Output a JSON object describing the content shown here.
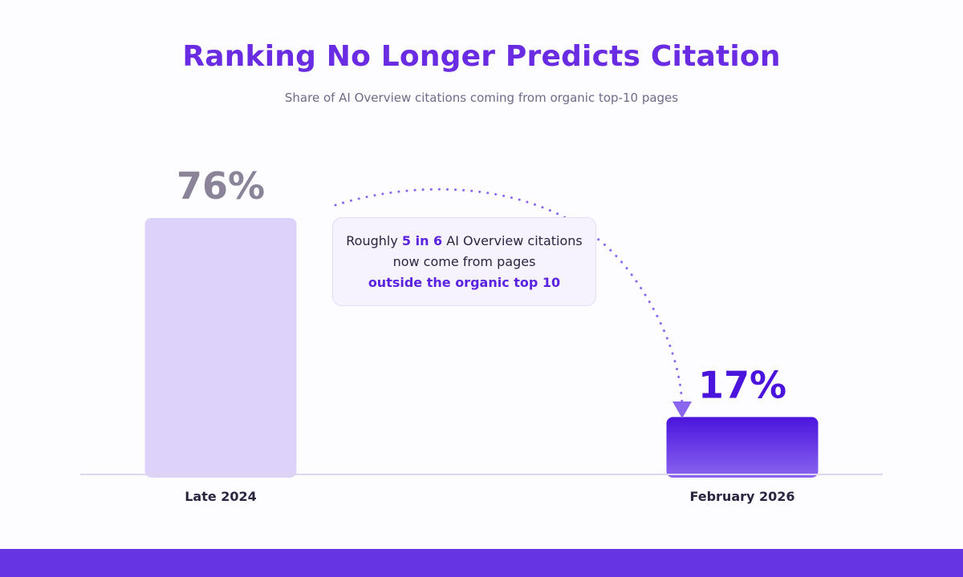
{
  "title": "Ranking No Longer Predicts Citation",
  "subtitle": "Share of AI Overview citations coming from organic top-10 pages",
  "callout": {
    "pre": "Roughly ",
    "highlight1": "5 in 6",
    "mid": " AI Overview citations now come from pages ",
    "highlight2": "outside the organic top 10"
  },
  "colors": {
    "accent": "#6a2ce3",
    "bar_late_2024": "#ddd3fa",
    "bar_feb_2026_top": "#4a14dc",
    "bar_feb_2026_bottom": "#8a65f0",
    "label_late_2024": "#8b8499",
    "label_feb_2026": "#4a14dc",
    "arrow": "#8a66ef",
    "footer": "#6634e2"
  },
  "chart_data": {
    "type": "bar",
    "categories": [
      "Late 2024",
      "February 2026"
    ],
    "values": [
      76,
      17
    ],
    "value_labels": [
      "76%",
      "17%"
    ],
    "title": "Ranking No Longer Predicts Citation",
    "subtitle": "Share of AI Overview citations coming from organic top-10 pages",
    "xlabel": "",
    "ylabel": "",
    "ylim": [
      0,
      100
    ],
    "grid": false,
    "legend": "none"
  }
}
